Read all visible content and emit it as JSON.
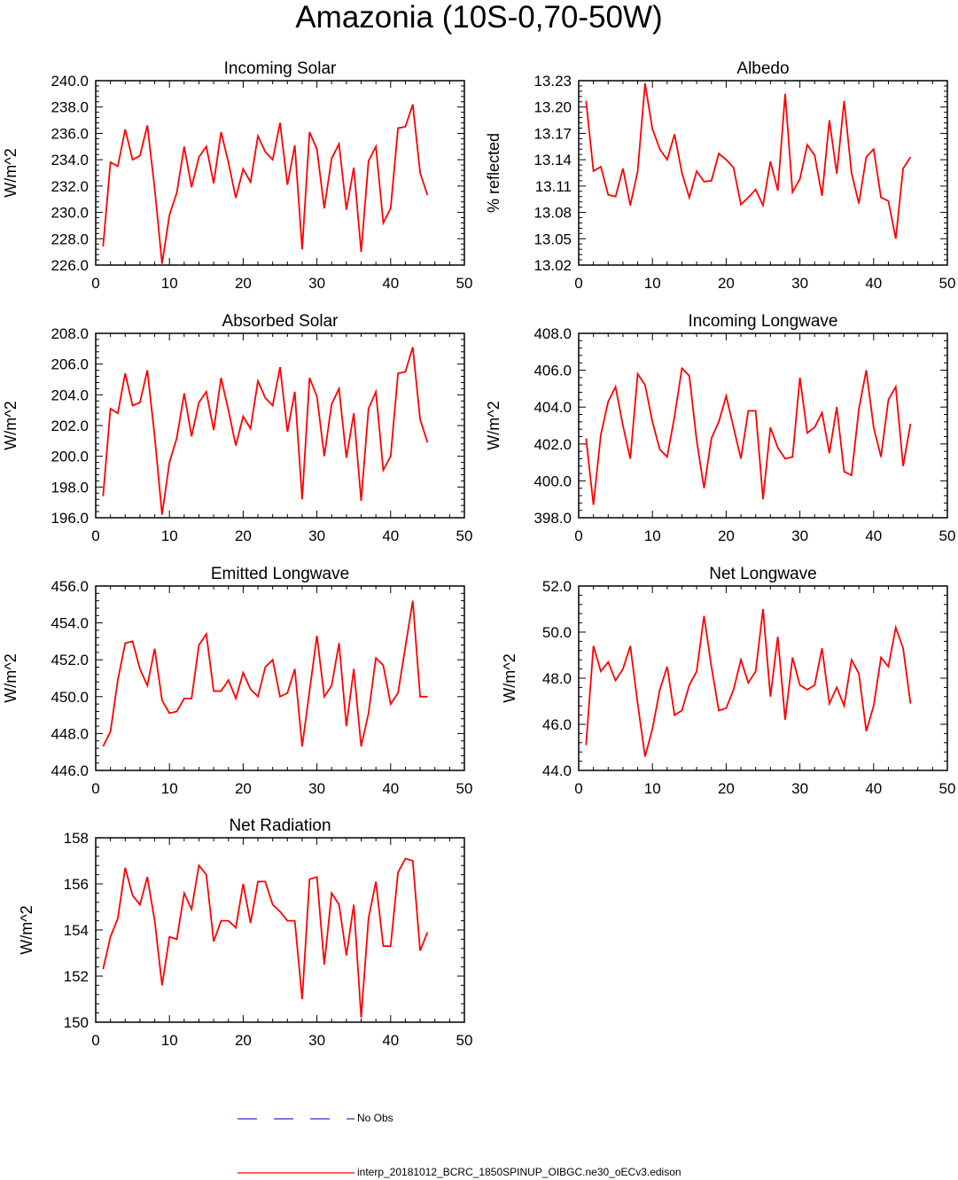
{
  "title": "Amazonia (10S-0,70-50W)",
  "legend": {
    "obs_label": "No Obs",
    "obs_color": "#2b2bd6",
    "model_label": "interp_20181012_BCRC_1850SPINUP_OIBGC.ne30_oECv3.edison",
    "model_color": "#ff0000"
  },
  "chart_data": [
    {
      "type": "line",
      "title": "Incoming Solar",
      "ylabel": "W/m^2",
      "xlim": [
        0,
        50
      ],
      "ylim": [
        226.0,
        240.0
      ],
      "xticks": [
        "0",
        "10",
        "20",
        "30",
        "40",
        "50"
      ],
      "yticks": [
        "226.0",
        "228.0",
        "230.0",
        "232.0",
        "234.0",
        "236.0",
        "238.0",
        "240.0"
      ],
      "series": [
        {
          "color": "#ff0000",
          "values": [
            227.4,
            233.8,
            233.5,
            236.3,
            234.0,
            234.3,
            236.6,
            231.8,
            226.1,
            229.8,
            231.5,
            235.0,
            231.9,
            234.2,
            235.0,
            232.2,
            236.1,
            233.8,
            231.1,
            233.3,
            232.3,
            235.8,
            234.6,
            234.0,
            236.8,
            232.1,
            235.1,
            227.2,
            236.1,
            234.8,
            230.3,
            234.1,
            235.2,
            230.2,
            233.4,
            227.0,
            233.9,
            235.0,
            229.2,
            230.3,
            236.4,
            236.5,
            238.2,
            233.0,
            231.3
          ]
        }
      ]
    },
    {
      "type": "line",
      "title": "Albedo",
      "ylabel": "% reflected",
      "xlim": [
        0,
        50
      ],
      "ylim": [
        13.02,
        13.23
      ],
      "xticks": [
        "0",
        "10",
        "20",
        "30",
        "40",
        "50"
      ],
      "yticks": [
        "13.02",
        "13.05",
        "13.08",
        "13.11",
        "13.14",
        "13.17",
        "13.20",
        "13.23"
      ],
      "series": [
        {
          "color": "#ff0000",
          "values": [
            13.207,
            13.127,
            13.132,
            13.1,
            13.098,
            13.13,
            13.088,
            13.127,
            13.227,
            13.175,
            13.152,
            13.14,
            13.169,
            13.125,
            13.097,
            13.127,
            13.115,
            13.116,
            13.147,
            13.14,
            13.131,
            13.089,
            13.097,
            13.106,
            13.088,
            13.138,
            13.105,
            13.215,
            13.103,
            13.118,
            13.157,
            13.145,
            13.099,
            13.185,
            13.124,
            13.207,
            13.125,
            13.09,
            13.143,
            13.152,
            13.097,
            13.093,
            13.05,
            13.13,
            13.143
          ]
        }
      ]
    },
    {
      "type": "line",
      "title": "Absorbed Solar",
      "ylabel": "W/m^2",
      "xlim": [
        0,
        50
      ],
      "ylim": [
        196.0,
        208.0
      ],
      "xticks": [
        "0",
        "10",
        "20",
        "30",
        "40",
        "50"
      ],
      "yticks": [
        "196.0",
        "198.0",
        "200.0",
        "202.0",
        "204.0",
        "206.0",
        "208.0"
      ],
      "series": [
        {
          "color": "#ff0000",
          "values": [
            197.4,
            203.1,
            202.8,
            205.4,
            203.3,
            203.5,
            205.6,
            201.3,
            196.2,
            199.6,
            201.2,
            204.1,
            201.3,
            203.5,
            204.2,
            201.7,
            205.1,
            203.0,
            200.7,
            202.6,
            201.8,
            204.9,
            203.8,
            203.3,
            205.8,
            201.6,
            204.2,
            197.2,
            205.1,
            203.9,
            200.0,
            203.4,
            204.4,
            199.9,
            202.8,
            197.1,
            203.1,
            204.2,
            199.1,
            200.0,
            205.4,
            205.5,
            207.1,
            202.4,
            200.9
          ]
        }
      ]
    },
    {
      "type": "line",
      "title": "Incoming Longwave",
      "ylabel": "W/m^2",
      "xlim": [
        0,
        50
      ],
      "ylim": [
        398.0,
        408.0
      ],
      "xticks": [
        "0",
        "10",
        "20",
        "30",
        "40",
        "50"
      ],
      "yticks": [
        "398.0",
        "400.0",
        "402.0",
        "404.0",
        "406.0",
        "408.0"
      ],
      "series": [
        {
          "color": "#ff0000",
          "values": [
            402.3,
            398.7,
            402.5,
            404.3,
            405.1,
            403.0,
            401.2,
            405.8,
            405.2,
            403.2,
            401.7,
            401.3,
            403.5,
            406.1,
            405.7,
            402.2,
            399.6,
            402.3,
            403.2,
            404.6,
            402.9,
            401.2,
            403.8,
            403.8,
            399.0,
            402.9,
            401.8,
            401.2,
            401.3,
            405.6,
            402.6,
            402.9,
            403.7,
            401.5,
            404.0,
            400.5,
            400.3,
            403.9,
            406.0,
            402.9,
            401.3,
            404.4,
            405.1,
            400.8,
            403.1
          ]
        }
      ]
    },
    {
      "type": "line",
      "title": "Emitted Longwave",
      "ylabel": "W/m^2",
      "xlim": [
        0,
        50
      ],
      "ylim": [
        446.0,
        456.0
      ],
      "xticks": [
        "0",
        "10",
        "20",
        "30",
        "40",
        "50"
      ],
      "yticks": [
        "446.0",
        "448.0",
        "450.0",
        "452.0",
        "454.0",
        "456.0"
      ],
      "series": [
        {
          "color": "#ff0000",
          "values": [
            447.3,
            448.1,
            450.9,
            452.9,
            453.0,
            451.5,
            450.6,
            452.6,
            449.8,
            449.1,
            449.2,
            449.9,
            449.9,
            452.8,
            453.4,
            450.3,
            450.3,
            450.9,
            449.9,
            451.3,
            450.4,
            450.0,
            451.6,
            452.0,
            450.0,
            450.2,
            451.5,
            447.3,
            450.3,
            453.3,
            450.0,
            450.6,
            452.9,
            448.4,
            451.5,
            447.3,
            449.1,
            452.1,
            451.7,
            449.6,
            450.2,
            452.7,
            455.2,
            450.0,
            450.0
          ]
        }
      ]
    },
    {
      "type": "line",
      "title": "Net Longwave",
      "ylabel": "W/m^2",
      "xlim": [
        0,
        50
      ],
      "ylim": [
        44.0,
        52.0
      ],
      "xticks": [
        "0",
        "10",
        "20",
        "30",
        "40",
        "50"
      ],
      "yticks": [
        "44.0",
        "46.0",
        "48.0",
        "50.0",
        "52.0"
      ],
      "series": [
        {
          "color": "#ff0000",
          "values": [
            45.1,
            49.4,
            48.3,
            48.7,
            47.9,
            48.4,
            49.4,
            46.9,
            44.6,
            45.8,
            47.5,
            48.5,
            46.4,
            46.6,
            47.7,
            48.3,
            50.7,
            48.5,
            46.6,
            46.7,
            47.5,
            48.8,
            47.8,
            48.3,
            51.0,
            47.2,
            49.8,
            46.2,
            48.9,
            47.7,
            47.5,
            47.7,
            49.3,
            46.9,
            47.6,
            46.8,
            48.8,
            48.2,
            45.7,
            46.8,
            48.9,
            48.5,
            50.2,
            49.3,
            46.9
          ]
        }
      ]
    },
    {
      "type": "line",
      "title": "Net Radiation",
      "ylabel": "W/m^2",
      "xlim": [
        0,
        50
      ],
      "ylim": [
        150,
        158
      ],
      "xticks": [
        "0",
        "10",
        "20",
        "30",
        "40",
        "50"
      ],
      "yticks": [
        "150",
        "152",
        "154",
        "156",
        "158"
      ],
      "series": [
        {
          "color": "#ff0000",
          "values": [
            152.3,
            153.7,
            154.5,
            156.7,
            155.5,
            155.1,
            156.3,
            154.4,
            151.6,
            153.7,
            153.6,
            155.6,
            154.9,
            156.8,
            156.4,
            153.5,
            154.4,
            154.4,
            154.1,
            156.0,
            154.3,
            156.1,
            156.1,
            155.1,
            154.8,
            154.4,
            154.4,
            151.0,
            156.2,
            156.3,
            152.5,
            155.6,
            155.1,
            152.9,
            155.1,
            150.2,
            154.5,
            156.1,
            153.3,
            153.3,
            156.5,
            157.1,
            157.0,
            153.1,
            153.9
          ]
        }
      ]
    }
  ]
}
